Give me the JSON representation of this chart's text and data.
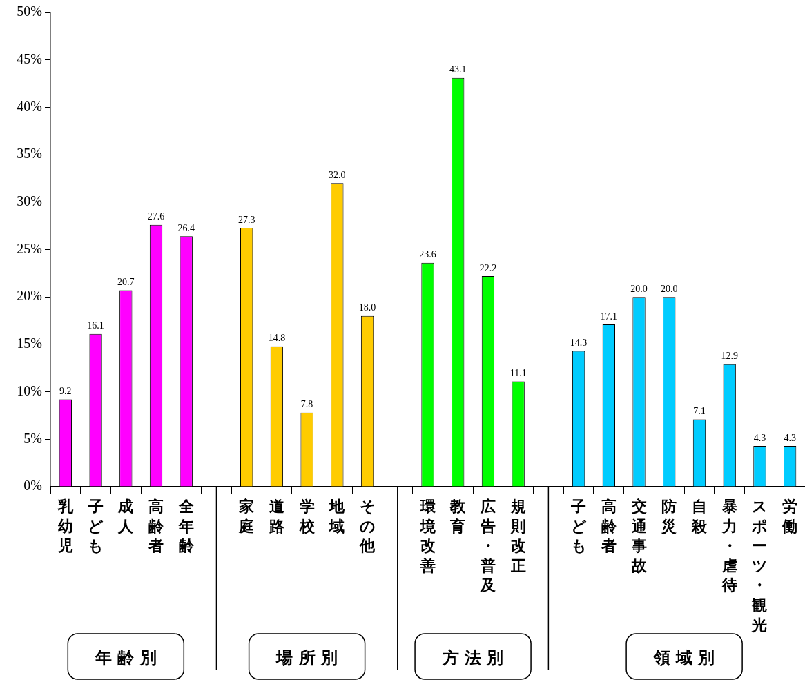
{
  "chart_data": {
    "type": "bar",
    "categories": [
      "乳幼児",
      "子ども",
      "成人",
      "高齢者",
      "全年齢",
      null,
      "家庭",
      "道路",
      "学校",
      "地域",
      "その他",
      null,
      "環境改善",
      "教育",
      "広告・普及",
      "規則改正",
      null,
      "子ども",
      "高齢者",
      "交通事故",
      "防災",
      "自殺",
      "暴力・虐待",
      "スポーツ・観光",
      "労働"
    ],
    "values": [
      9.2,
      16.1,
      20.7,
      27.6,
      26.4,
      null,
      27.3,
      14.8,
      7.8,
      32.0,
      18.0,
      null,
      23.6,
      43.1,
      22.2,
      11.1,
      null,
      14.3,
      17.1,
      20.0,
      20.0,
      7.1,
      12.9,
      4.3,
      4.3
    ],
    "value_labels": [
      "9.2",
      "16.1",
      "20.7",
      "27.6",
      "26.4",
      null,
      "27.3",
      "14.8",
      "7.8",
      "32.0",
      "18.0",
      null,
      "23.6",
      "43.1",
      "22.2",
      "11.1",
      null,
      "14.3",
      "17.1",
      "20.0",
      "20.0",
      "7.1",
      "12.9",
      "4.3",
      "4.3"
    ],
    "colors": [
      "#ff00ff",
      "#ff00ff",
      "#ff00ff",
      "#ff00ff",
      "#ff00ff",
      null,
      "#ffcc00",
      "#ffcc00",
      "#ffcc00",
      "#ffcc00",
      "#ffcc00",
      null,
      "#00ff00",
      "#00ff00",
      "#00ff00",
      "#00ff00",
      null,
      "#00ccff",
      "#00ccff",
      "#00ccff",
      "#00ccff",
      "#00ccff",
      "#00ccff",
      "#00ccff",
      "#00ccff"
    ],
    "ylim": [
      0,
      50
    ],
    "yticks": [
      {
        "value": 0,
        "label": "0%"
      },
      {
        "value": 5,
        "label": "5%"
      },
      {
        "value": 10,
        "label": "10%"
      },
      {
        "value": 15,
        "label": "15%"
      },
      {
        "value": 20,
        "label": "20%"
      },
      {
        "value": 25,
        "label": "25%"
      },
      {
        "value": 30,
        "label": "30%"
      },
      {
        "value": 35,
        "label": "35%"
      },
      {
        "value": 40,
        "label": "40%"
      },
      {
        "value": 45,
        "label": "45%"
      },
      {
        "value": 50,
        "label": "50%"
      }
    ],
    "annotations": [
      "年 齢 別",
      "場 所 別",
      "方 法 別",
      "領 域 別"
    ],
    "grid": false,
    "legend": false
  }
}
